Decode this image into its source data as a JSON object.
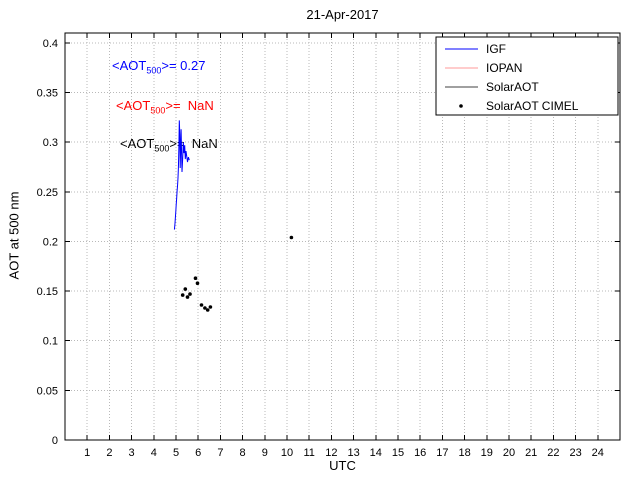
{
  "chart_data": {
    "type": "line",
    "title": "21-Apr-2017",
    "xlabel": "UTC",
    "ylabel": "AOT at 500 nm",
    "xlim": [
      0,
      25
    ],
    "ylim": [
      0,
      0.41
    ],
    "grid": true,
    "legend_position": "top-right",
    "xticks": [
      1,
      2,
      3,
      4,
      5,
      6,
      7,
      8,
      9,
      10,
      11,
      12,
      13,
      14,
      15,
      16,
      17,
      18,
      19,
      20,
      21,
      22,
      23,
      24
    ],
    "xtick_labels": [
      "1",
      "2",
      "3",
      "4",
      "5",
      "6",
      "7",
      "8",
      "9",
      "10",
      "11",
      "12",
      "13",
      "14",
      "15",
      "16",
      "17",
      "18",
      "19",
      "20",
      "21",
      "22",
      "23",
      "24"
    ],
    "yticks": [
      0,
      0.05,
      0.1,
      0.15,
      0.2,
      0.25,
      0.3,
      0.35,
      0.4
    ],
    "ytick_labels": [
      "0",
      "0.05",
      "0.1",
      "0.15",
      "0.2",
      "0.25",
      "0.3",
      "0.35",
      "0.4"
    ],
    "series": [
      {
        "name": "IGF",
        "style": "line",
        "color": "#0000ff",
        "x": [
          4.93,
          4.95,
          4.97,
          4.99,
          5.01,
          5.03,
          5.05,
          5.07,
          5.09,
          5.11,
          5.13,
          5.15,
          5.17,
          5.19,
          5.21,
          5.23,
          5.25,
          5.27,
          5.3,
          5.33,
          5.36,
          5.39,
          5.42,
          5.45,
          5.48,
          5.52,
          5.56,
          5.6
        ],
        "y": [
          0.212,
          0.217,
          0.223,
          0.23,
          0.237,
          0.244,
          0.251,
          0.257,
          0.264,
          0.274,
          0.296,
          0.322,
          0.308,
          0.274,
          0.295,
          0.313,
          0.288,
          0.27,
          0.284,
          0.3,
          0.289,
          0.297,
          0.283,
          0.291,
          0.286,
          0.28,
          0.285,
          0.282
        ]
      },
      {
        "name": "IOPAN",
        "style": "line",
        "color": "#ff9999",
        "x": [],
        "y": []
      },
      {
        "name": "SolarAOT",
        "style": "line",
        "color": "#404040",
        "x": [],
        "y": []
      },
      {
        "name": "SolarAOT CIMEL",
        "style": "dot",
        "color": "#000000",
        "x": [
          5.3,
          5.42,
          5.52,
          5.63,
          5.88,
          5.97,
          6.15,
          6.3,
          6.43,
          6.55,
          10.2
        ],
        "y": [
          0.146,
          0.152,
          0.144,
          0.147,
          0.163,
          0.158,
          0.136,
          0.133,
          0.131,
          0.134,
          0.204
        ]
      }
    ],
    "annotations": [
      {
        "pre": "<AOT",
        "sub": "500",
        "post": ">= 0.27",
        "color": "#0000ff"
      },
      {
        "pre": "<AOT",
        "sub": "500",
        "post": ">=  NaN",
        "color": "#ff0000"
      },
      {
        "pre": "<AOT",
        "sub": "500",
        "post": ">=  NaN",
        "color": "#000000"
      }
    ]
  }
}
